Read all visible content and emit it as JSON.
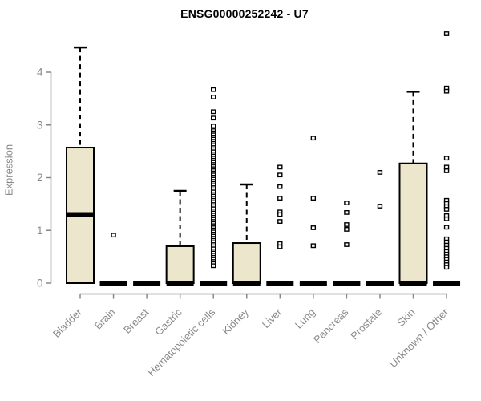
{
  "chart_data": {
    "type": "boxplot",
    "title": "ENSG00000252242 - U7",
    "ylabel": "Expression",
    "xlabel": "",
    "ylim": [
      0,
      4.8
    ],
    "yticks": [
      "0",
      "1",
      "2",
      "3",
      "4"
    ],
    "grid": false,
    "legend": "none",
    "colors": {
      "box_fill": "#ECE7CC",
      "box_stroke": "#000000",
      "axis": "#888888",
      "axis_text": "#8a8a8a",
      "title_text": "#000000",
      "outlier_fill": "#ffffff"
    },
    "categories": [
      "Bladder",
      "Brain",
      "Breast",
      "Gastric",
      "Hematopoietic cells",
      "Kidney",
      "Liver",
      "Lung",
      "Pancreas",
      "Prostate",
      "Skin",
      "Unknown / Other"
    ],
    "series": [
      {
        "category": "Bladder",
        "min": 0,
        "q1": 0,
        "median": 1.3,
        "q3": 2.57,
        "whisker_high": 4.47,
        "outliers": []
      },
      {
        "category": "Brain",
        "min": 0,
        "q1": 0,
        "median": 0,
        "q3": 0,
        "whisker_high": 0,
        "outliers": [
          0.91
        ]
      },
      {
        "category": "Breast",
        "min": 0,
        "q1": 0,
        "median": 0,
        "q3": 0,
        "whisker_high": 0,
        "outliers": []
      },
      {
        "category": "Gastric",
        "min": 0,
        "q1": 0,
        "median": 0,
        "q3": 0.7,
        "whisker_high": 1.75,
        "outliers": []
      },
      {
        "category": "Hematopoietic cells",
        "min": 0,
        "q1": 0,
        "median": 0,
        "q3": 0,
        "whisker_high": 0,
        "outliers": [
          3.67,
          3.53,
          3.25,
          3.13,
          2.98,
          2.89,
          2.85,
          2.81,
          2.77,
          2.73,
          2.69,
          2.65,
          2.61,
          2.57,
          2.53,
          2.49,
          2.45,
          2.41,
          2.37,
          2.33,
          2.29,
          2.25,
          2.21,
          2.17,
          2.13,
          2.09,
          2.05,
          2.01,
          1.97,
          1.93,
          1.89,
          1.85,
          1.81,
          1.77,
          1.73,
          1.69,
          1.65,
          1.61,
          1.57,
          1.53,
          1.49,
          1.45,
          1.41,
          1.37,
          1.33,
          1.29,
          1.25,
          1.21,
          1.17,
          1.13,
          1.09,
          1.05,
          1.01,
          0.97,
          0.93,
          0.89,
          0.85,
          0.81,
          0.77,
          0.73,
          0.69,
          0.65,
          0.61,
          0.57,
          0.53,
          0.49,
          0.45,
          0.41,
          0.37,
          0.33
        ]
      },
      {
        "category": "Kidney",
        "min": 0,
        "q1": 0,
        "median": 0,
        "q3": 0.76,
        "whisker_high": 1.87,
        "outliers": []
      },
      {
        "category": "Liver",
        "min": 0,
        "q1": 0,
        "median": 0,
        "q3": 0,
        "whisker_high": 0,
        "outliers": [
          2.2,
          2.05,
          1.83,
          1.61,
          1.35,
          1.3,
          1.17,
          0.75,
          0.69
        ]
      },
      {
        "category": "Lung",
        "min": 0,
        "q1": 0,
        "median": 0,
        "q3": 0,
        "whisker_high": 0,
        "outliers": [
          2.75,
          1.61,
          1.05,
          0.71
        ]
      },
      {
        "category": "Pancreas",
        "min": 0,
        "q1": 0,
        "median": 0,
        "q3": 0,
        "whisker_high": 0,
        "outliers": [
          1.52,
          1.34,
          1.11,
          1.02,
          0.73
        ]
      },
      {
        "category": "Prostate",
        "min": 0,
        "q1": 0,
        "median": 0,
        "q3": 0,
        "whisker_high": 0,
        "outliers": [
          2.1,
          1.46
        ]
      },
      {
        "category": "Skin",
        "min": 0,
        "q1": 0,
        "median": 0,
        "q3": 2.27,
        "whisker_high": 3.63,
        "outliers": []
      },
      {
        "category": "Unknown / Other",
        "min": 0,
        "q1": 0,
        "median": 0,
        "q3": 0,
        "whisker_high": 0,
        "outliers": [
          4.73,
          3.7,
          3.64,
          2.37,
          2.2,
          2.13,
          1.57,
          1.51,
          1.45,
          1.4,
          1.28,
          1.22,
          1.06,
          0.84,
          0.78,
          0.72,
          0.66,
          0.6,
          0.55,
          0.5,
          0.45,
          0.4,
          0.35,
          0.3
        ]
      }
    ]
  }
}
